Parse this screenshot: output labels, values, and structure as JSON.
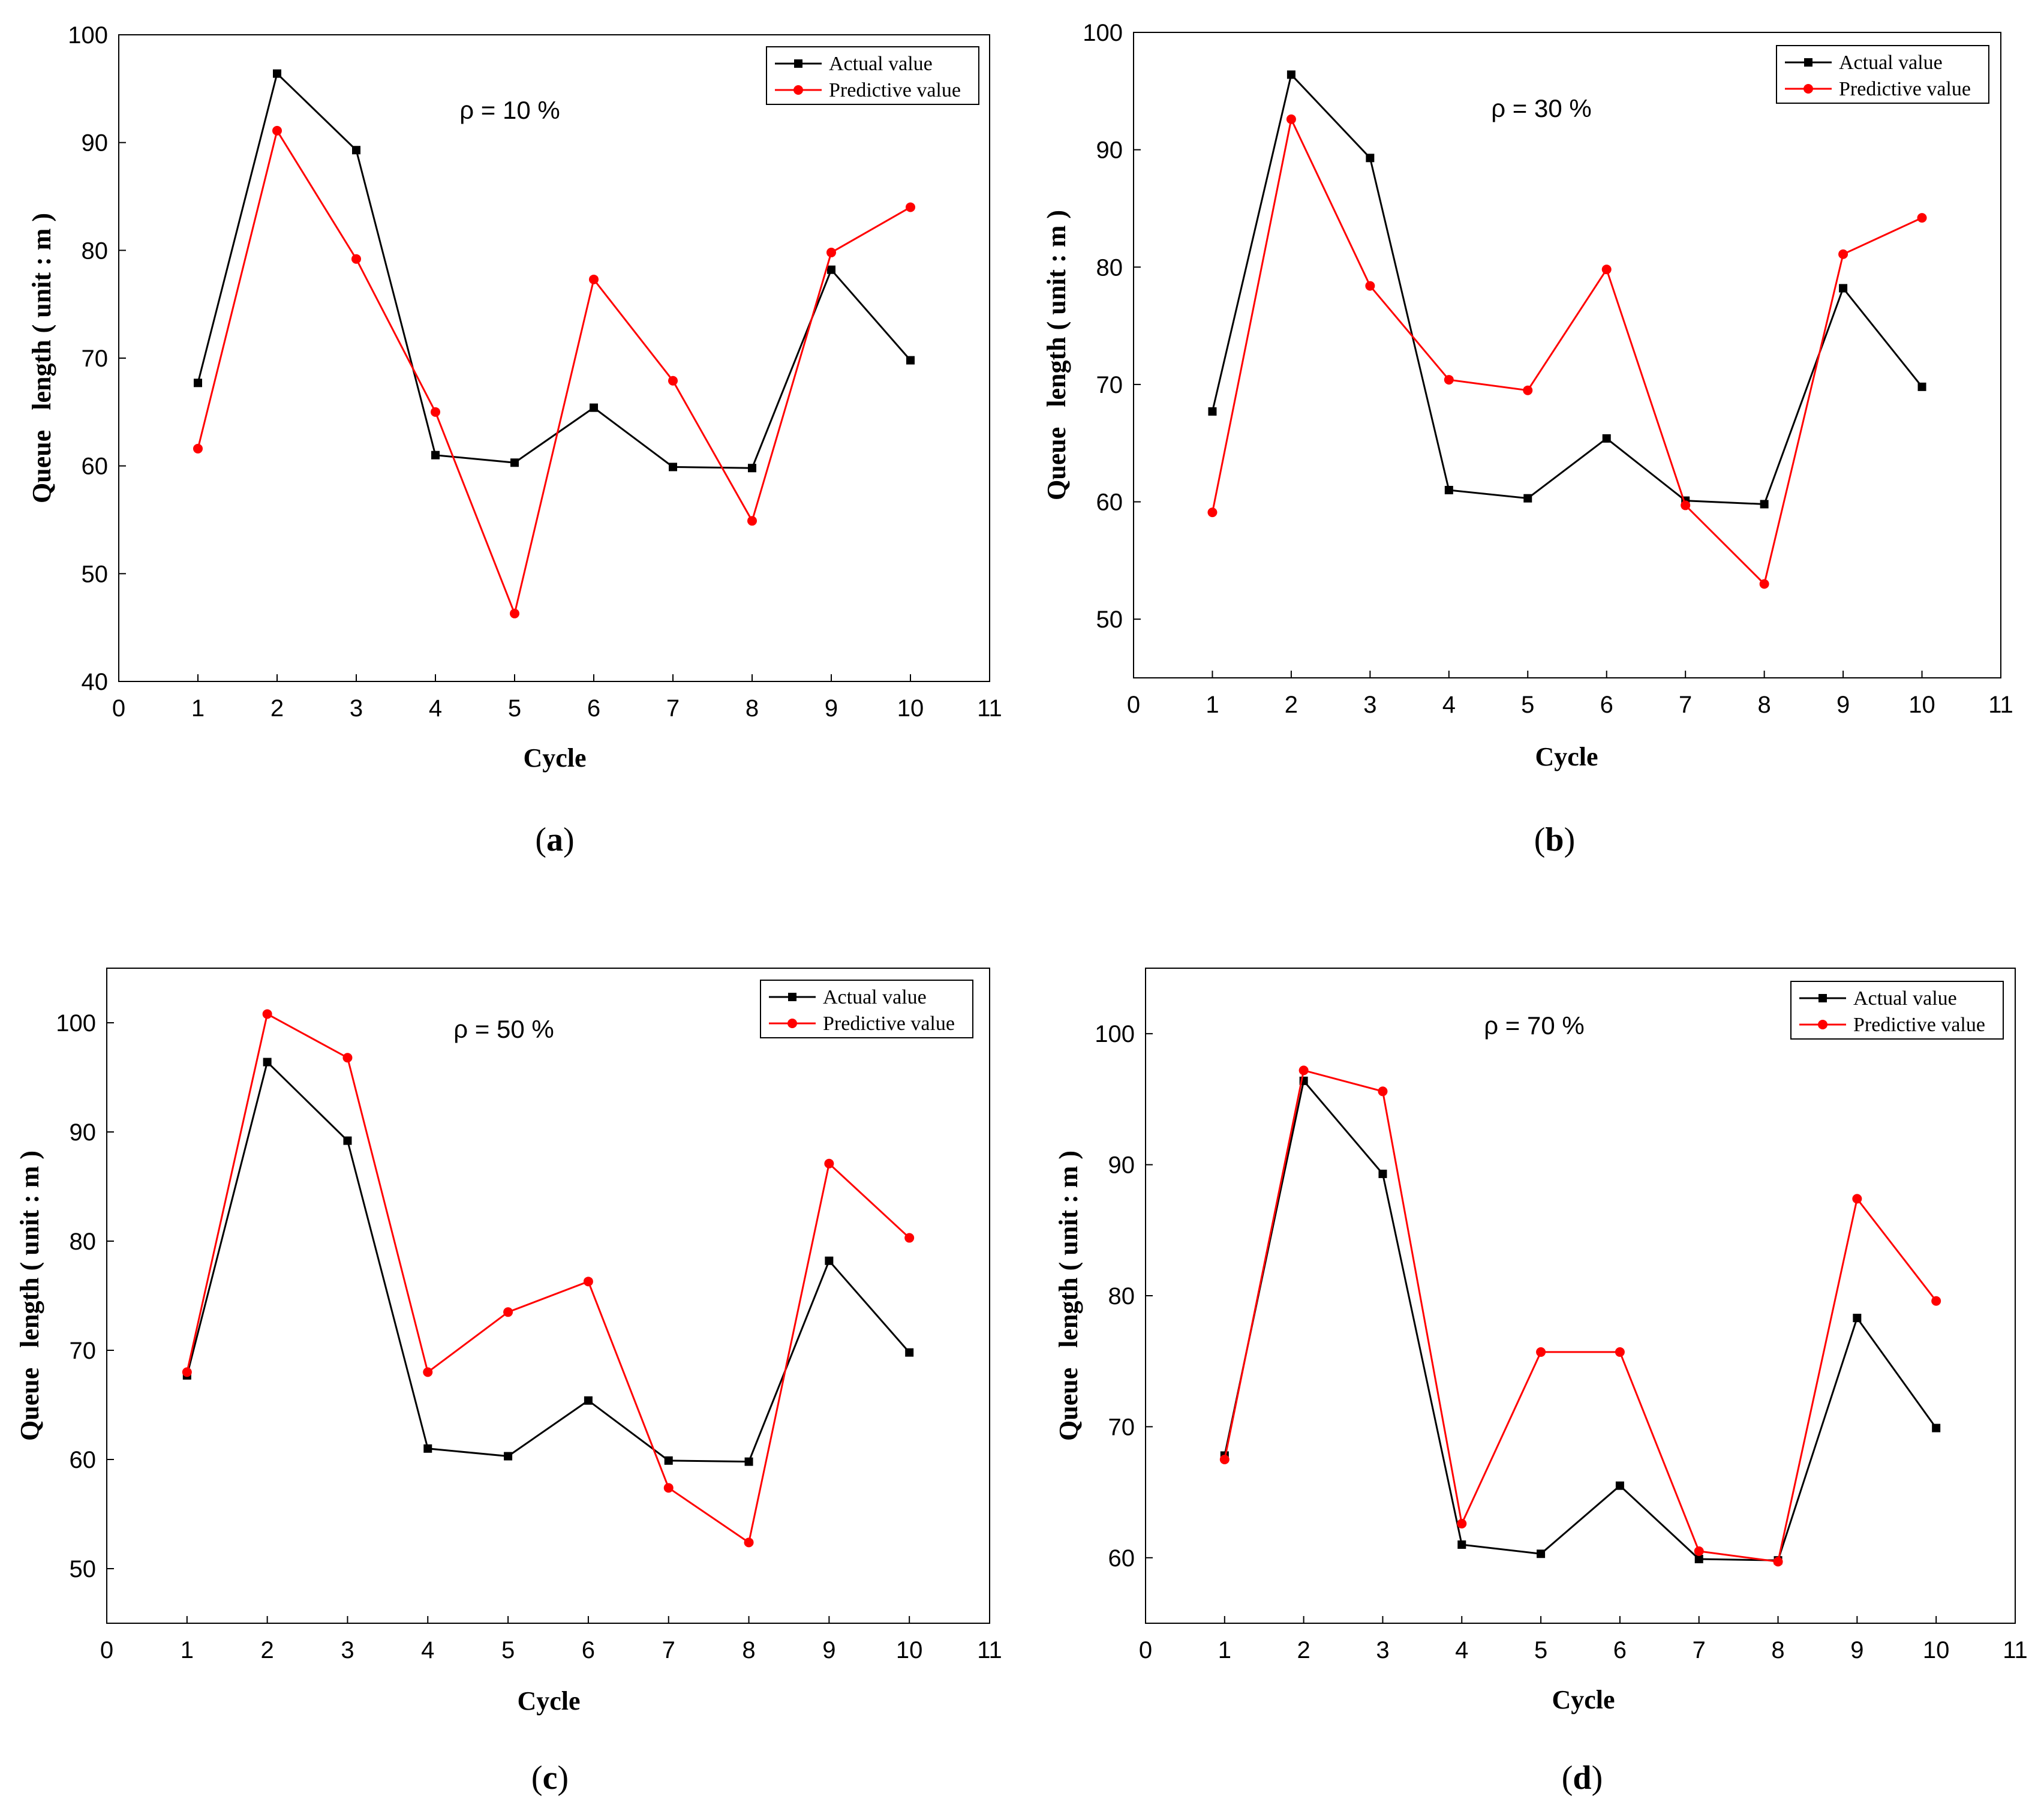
{
  "chart_data": [
    {
      "type": "line",
      "panel_label": "a",
      "annotation": "ρ = 10 %",
      "xlabel": "Cycle",
      "ylabel": "Queue   length ( unit : m )",
      "xlim": [
        0,
        11
      ],
      "ylim": [
        40,
        100
      ],
      "xticks": [
        "0",
        "1",
        "2",
        "3",
        "4",
        "5",
        "6",
        "7",
        "8",
        "9",
        "10",
        "11"
      ],
      "yticks": [
        "40",
        "50",
        "60",
        "70",
        "80",
        "90",
        "100"
      ],
      "x": [
        1,
        2,
        3,
        4,
        5,
        6,
        7,
        8,
        9,
        10
      ],
      "series": [
        {
          "name": "Actual value",
          "color": "#000000",
          "marker": "square",
          "values": [
            67.7,
            96.4,
            89.3,
            61.0,
            60.3,
            65.4,
            59.9,
            59.8,
            78.2,
            69.8
          ]
        },
        {
          "name": "Predictive value",
          "color": "#ff0000",
          "marker": "circle",
          "values": [
            61.6,
            91.1,
            79.2,
            65.0,
            46.3,
            77.3,
            67.9,
            54.9,
            79.8,
            84.0
          ]
        }
      ]
    },
    {
      "type": "line",
      "panel_label": "b",
      "annotation": "ρ = 30 %",
      "xlabel": "Cycle",
      "ylabel": "Queue   length ( unit : m )",
      "xlim": [
        0,
        11
      ],
      "ylim": [
        45,
        100
      ],
      "xticks": [
        "0",
        "1",
        "2",
        "3",
        "4",
        "5",
        "6",
        "7",
        "8",
        "9",
        "10",
        "11"
      ],
      "yticks": [
        "50",
        "60",
        "70",
        "80",
        "90",
        "100"
      ],
      "x": [
        1,
        2,
        3,
        4,
        5,
        6,
        7,
        8,
        9,
        10
      ],
      "series": [
        {
          "name": "Actual value",
          "color": "#000000",
          "marker": "square",
          "values": [
            67.7,
            96.4,
            89.3,
            61.0,
            60.3,
            65.4,
            60.1,
            59.8,
            78.2,
            69.8
          ]
        },
        {
          "name": "Predictive value",
          "color": "#ff0000",
          "marker": "circle",
          "values": [
            59.1,
            92.6,
            78.4,
            70.4,
            69.5,
            79.8,
            59.7,
            53.0,
            81.1,
            84.2
          ]
        }
      ]
    },
    {
      "type": "line",
      "panel_label": "c",
      "annotation": "ρ = 50 %",
      "xlabel": "Cycle",
      "ylabel": "Queue   length ( unit : m )",
      "xlim": [
        0,
        11
      ],
      "ylim": [
        45,
        105
      ],
      "xticks": [
        "0",
        "1",
        "2",
        "3",
        "4",
        "5",
        "6",
        "7",
        "8",
        "9",
        "10",
        "11"
      ],
      "yticks": [
        "50",
        "60",
        "70",
        "80",
        "90",
        "100"
      ],
      "x": [
        1,
        2,
        3,
        4,
        5,
        6,
        7,
        8,
        9,
        10
      ],
      "series": [
        {
          "name": "Actual value",
          "color": "#000000",
          "marker": "square",
          "values": [
            67.7,
            96.4,
            89.2,
            61.0,
            60.3,
            65.4,
            59.9,
            59.8,
            78.2,
            69.8
          ]
        },
        {
          "name": "Predictive value",
          "color": "#ff0000",
          "marker": "circle",
          "values": [
            68.0,
            100.8,
            96.8,
            68.0,
            73.5,
            76.3,
            57.4,
            52.4,
            87.1,
            80.3
          ]
        }
      ]
    },
    {
      "type": "line",
      "panel_label": "d",
      "annotation": "ρ = 70 %",
      "xlabel": "Cycle",
      "ylabel": "Queue   length ( unit : m )",
      "xlim": [
        0,
        11
      ],
      "ylim": [
        55,
        105
      ],
      "xticks": [
        "0",
        "1",
        "2",
        "3",
        "4",
        "5",
        "6",
        "7",
        "8",
        "9",
        "10",
        "11"
      ],
      "yticks": [
        "60",
        "70",
        "80",
        "90",
        "100"
      ],
      "x": [
        1,
        2,
        3,
        4,
        5,
        6,
        7,
        8,
        9,
        10
      ],
      "series": [
        {
          "name": "Actual value",
          "color": "#000000",
          "marker": "square",
          "values": [
            67.8,
            96.4,
            89.3,
            61.0,
            60.3,
            65.5,
            59.9,
            59.8,
            78.3,
            69.9
          ]
        },
        {
          "name": "Predictive value",
          "color": "#ff0000",
          "marker": "circle",
          "values": [
            67.5,
            97.2,
            95.6,
            62.6,
            75.7,
            75.7,
            60.5,
            59.7,
            87.4,
            79.6
          ]
        }
      ]
    }
  ]
}
